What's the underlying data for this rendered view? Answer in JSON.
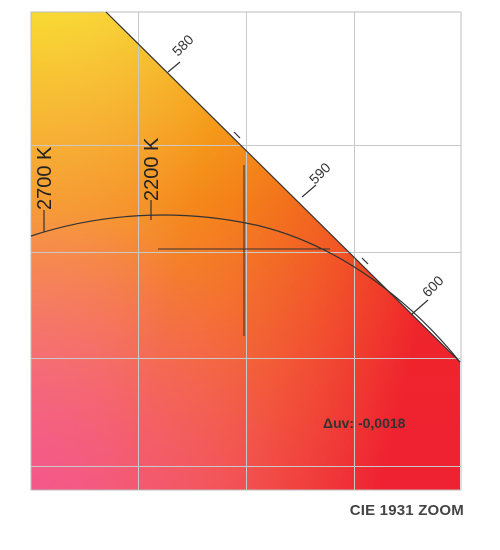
{
  "chart_data": {
    "type": "chromaticity-diagram",
    "title": "CIE 1931 ZOOM",
    "spectral_locus_labels": [
      {
        "wavelength_nm": 580,
        "label": "580"
      },
      {
        "wavelength_nm": 590,
        "label": "590"
      },
      {
        "wavelength_nm": 600,
        "label": "600"
      }
    ],
    "isotherm_labels": [
      {
        "cct": 2700,
        "label": "2700 K"
      },
      {
        "cct": 2200,
        "label": "2200 K"
      }
    ],
    "duv": {
      "label": "Δuv: -0,0018",
      "value": -0.0018
    },
    "grid": true,
    "colors": {
      "yellow": "#f7d51a",
      "orange": "#f58a10",
      "red": "#ee2430",
      "pink": "#f4508a",
      "salmon": "#f4a285",
      "grid": "#c9c9c9",
      "line": "#333333"
    }
  }
}
